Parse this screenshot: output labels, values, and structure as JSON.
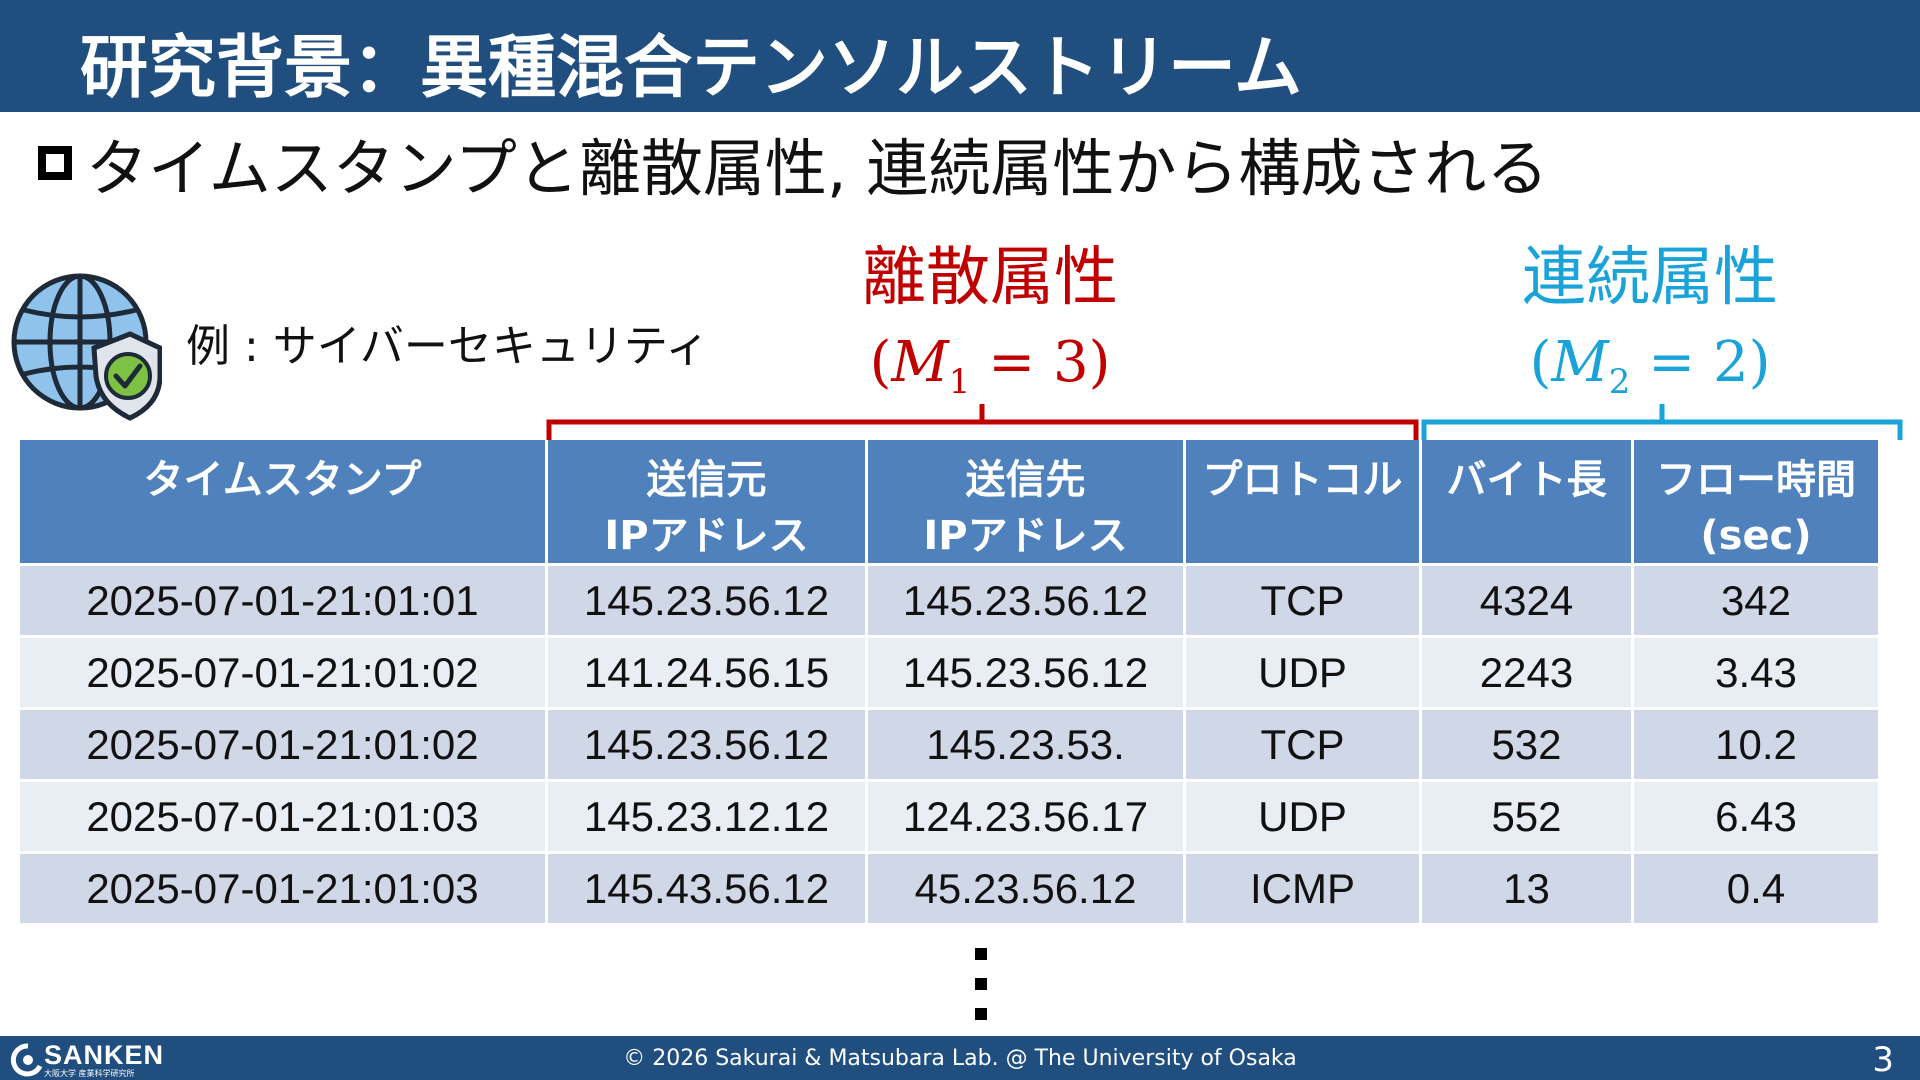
{
  "title": "研究背景：異種混合テンソルストリーム",
  "subtitle": "タイムスタンプと離散属性, 連続属性から構成される",
  "example_label": "例 : サイバーセキュリティ",
  "discrete_group": {
    "label": "離散属性",
    "symbol": "M",
    "subscript": "1",
    "value": "3",
    "color": "#c00000"
  },
  "continuous_group": {
    "label": "連続属性",
    "symbol": "M",
    "subscript": "2",
    "value": "2",
    "color": "#19a3d9"
  },
  "table": {
    "headers": [
      "タイムスタンプ",
      "送信元\nIPアドレス",
      "送信先\nIPアドレス",
      "プロトコル",
      "バイト長",
      "フロー時間\n(sec)"
    ],
    "rows": [
      [
        "2025-07-01-21:01:01",
        "145.23.56.12",
        "145.23.56.12",
        "TCP",
        "4324",
        "342"
      ],
      [
        "2025-07-01-21:01:02",
        "141.24.56.15",
        "145.23.56.12",
        "UDP",
        "2243",
        "3.43"
      ],
      [
        "2025-07-01-21:01:02",
        "145.23.56.12",
        "145.23.53.",
        "TCP",
        "532",
        "10.2"
      ],
      [
        "2025-07-01-21:01:03",
        "145.23.12.12",
        "124.23.56.17",
        "UDP",
        "552",
        "6.43"
      ],
      [
        "2025-07-01-21:01:03",
        "145.43.56.12",
        "45.23.56.12",
        "ICMP",
        "13",
        "0.4"
      ]
    ]
  },
  "footer": {
    "logo": "SANKEN",
    "logo_sub": "大阪大学 産業科学研究所",
    "copyright": "© 2026 Sakurai & Matsubara Lab. @ The University of Osaka",
    "page": "3"
  },
  "icons": [
    "globe-shield-icon",
    "sanken-logo-icon"
  ]
}
